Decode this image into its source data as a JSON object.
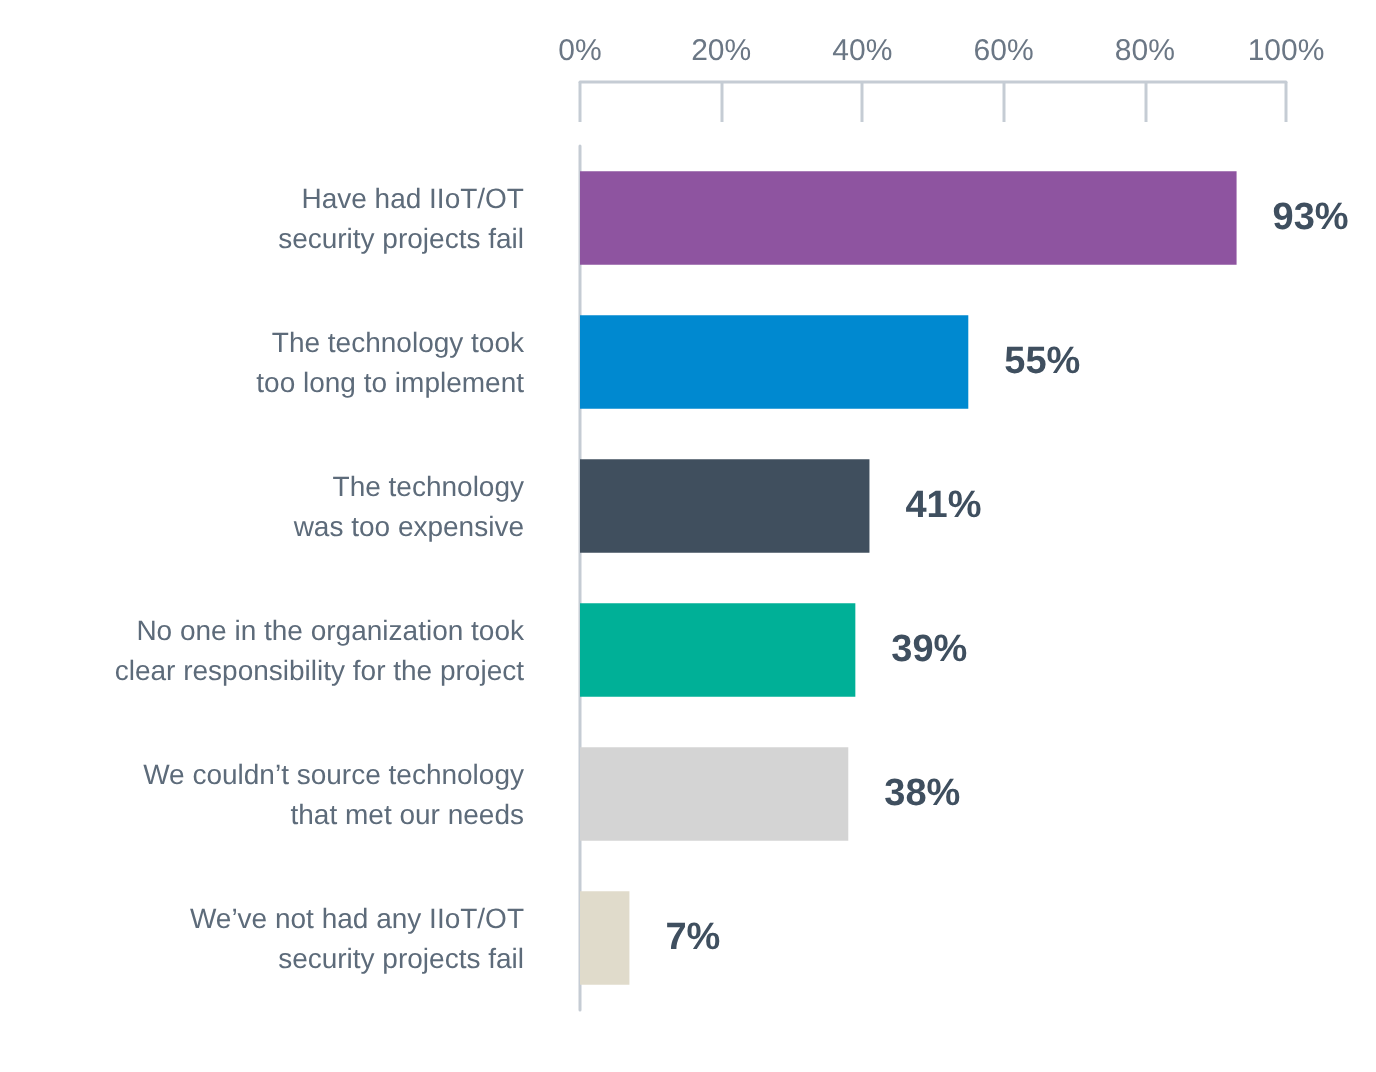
{
  "chart_data": {
    "type": "bar",
    "orientation": "horizontal",
    "categories": [
      "Have had IIoT/OT\nsecurity projects fail",
      "The technology took\ntoo long to implement",
      "The technology\nwas too expensive",
      "No one in the organization took\nclear responsibility for the project",
      "We couldn’t source technology\nthat met our needs",
      "We’ve not had any IIoT/OT\nsecurity projects fail"
    ],
    "values": [
      93,
      55,
      41,
      39,
      38,
      7
    ],
    "colors": [
      "#8e54a0",
      "#0089d0",
      "#404f5e",
      "#00b097",
      "#d4d4d4",
      "#e0dbcb"
    ],
    "value_labels": [
      "93%",
      "55%",
      "41%",
      "39%",
      "38%",
      "7%"
    ],
    "xlim": [
      0,
      100
    ],
    "xticks": [
      {
        "value": 0,
        "label": "0%"
      },
      {
        "value": 20,
        "label": "20%"
      },
      {
        "value": 40,
        "label": "40%"
      },
      {
        "value": 60,
        "label": "60%"
      },
      {
        "value": 80,
        "label": "80%"
      },
      {
        "value": 100,
        "label": "100%"
      }
    ],
    "grid": false
  }
}
